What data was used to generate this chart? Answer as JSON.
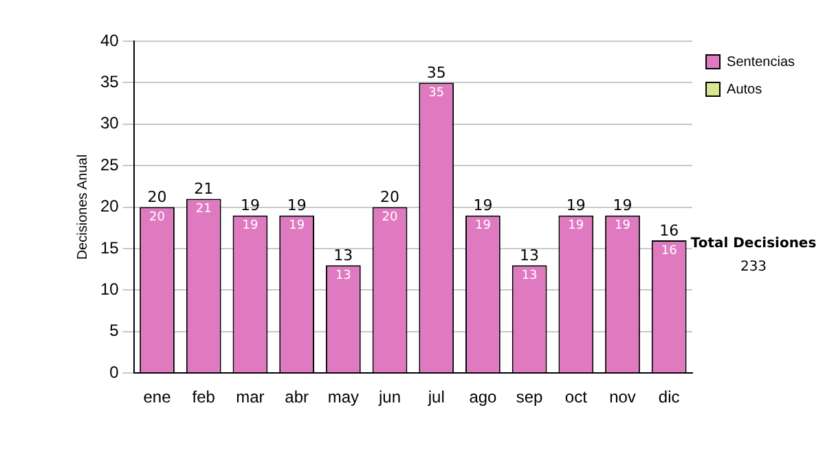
{
  "chart_data": {
    "type": "bar",
    "stacked": true,
    "ylabel": "Decisiones Anual",
    "categories": [
      "ene",
      "feb",
      "mar",
      "abr",
      "may",
      "jun",
      "jul",
      "ago",
      "sep",
      "oct",
      "nov",
      "dic"
    ],
    "series": [
      {
        "name": "Sentencias",
        "color": "#e07ac0",
        "values": [
          20,
          21,
          19,
          19,
          13,
          20,
          35,
          19,
          13,
          19,
          19,
          16
        ]
      },
      {
        "name": "Autos",
        "color": "#d8e890",
        "values": [
          null,
          null,
          null,
          null,
          null,
          null,
          null,
          null,
          null,
          null,
          null,
          null
        ]
      }
    ],
    "totals": [
      "20",
      "21",
      "19",
      "19",
      "13",
      "20",
      "35",
      "19",
      "13",
      "19",
      "19",
      "16"
    ],
    "data_labels": true,
    "ylim": [
      0,
      40
    ],
    "yticks": [
      0,
      5,
      10,
      15,
      20,
      25,
      30,
      35,
      40
    ],
    "grid": "y",
    "legend": "right",
    "annotations": [
      "Total Decisiones",
      "233"
    ]
  }
}
